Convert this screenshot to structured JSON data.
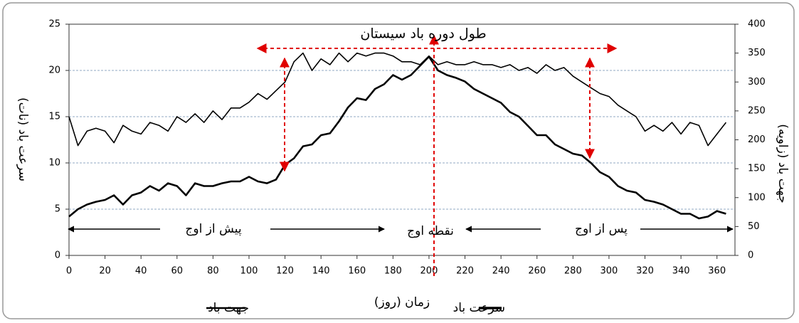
{
  "chart_data": {
    "type": "line",
    "x_label": "زمان (روز)",
    "y_label": "سرعت باد (نات)",
    "y2_label": "جهت باد (زاویه)",
    "annotations": [
      "طول دوره باد سیستان",
      "پیش از اوج",
      "نقطه اوج",
      "پس از اوج"
    ],
    "x": [
      0,
      5,
      10,
      15,
      20,
      25,
      30,
      35,
      40,
      45,
      50,
      55,
      60,
      65,
      70,
      75,
      80,
      85,
      90,
      95,
      100,
      105,
      110,
      115,
      120,
      125,
      130,
      135,
      140,
      145,
      150,
      155,
      160,
      165,
      170,
      175,
      180,
      185,
      190,
      195,
      200,
      205,
      210,
      215,
      220,
      225,
      230,
      235,
      240,
      245,
      250,
      255,
      260,
      265,
      270,
      275,
      280,
      285,
      290,
      295,
      300,
      305,
      310,
      315,
      320,
      325,
      330,
      335,
      340,
      345,
      350,
      355,
      360,
      365
    ],
    "xlim": [
      0,
      370
    ],
    "xticks": [
      0,
      20,
      40,
      60,
      80,
      100,
      120,
      140,
      160,
      180,
      200,
      220,
      240,
      260,
      280,
      300,
      320,
      340,
      360
    ],
    "ylim": [
      0,
      25
    ],
    "yticks": [
      0,
      5,
      10,
      15,
      20,
      25
    ],
    "y2lim": [
      0,
      400
    ],
    "y2ticks": [
      0,
      50,
      100,
      150,
      200,
      250,
      300,
      350,
      400
    ],
    "grid": true,
    "series": [
      {
        "name": "جهت باد",
        "color": "#000000",
        "line_width": 1.6,
        "axis": "y2",
        "values": [
          240,
          190,
          215,
          220,
          215,
          195,
          225,
          215,
          210,
          230,
          225,
          215,
          240,
          230,
          245,
          230,
          250,
          235,
          255,
          255,
          265,
          280,
          270,
          285,
          300,
          335,
          350,
          320,
          340,
          330,
          350,
          335,
          350,
          345,
          350,
          350,
          345,
          335,
          335,
          330,
          345,
          330,
          335,
          330,
          330,
          335,
          330,
          330,
          325,
          330,
          320,
          325,
          315,
          330,
          320,
          325,
          310,
          300,
          290,
          280,
          275,
          260,
          250,
          240,
          215,
          225,
          215,
          230,
          210,
          230,
          225,
          190,
          210,
          230
        ]
      },
      {
        "name": "سرعت باد",
        "color": "#000000",
        "line_width": 2.6,
        "values": [
          4.2,
          5,
          5.5,
          5.8,
          6,
          6.5,
          5.5,
          6.5,
          6.8,
          7.5,
          7,
          7.8,
          7.5,
          6.5,
          7.8,
          7.5,
          7.5,
          7.8,
          8,
          8,
          8.5,
          8,
          7.8,
          8.2,
          9.8,
          10.5,
          11.8,
          12,
          13,
          13.2,
          14.5,
          16,
          17,
          16.8,
          18,
          18.5,
          19.5,
          19,
          19.5,
          20.5,
          21.5,
          20,
          19.5,
          19.2,
          18.8,
          18,
          17.5,
          17,
          16.5,
          15.5,
          15,
          14,
          13,
          13,
          12,
          11.5,
          11,
          10.8,
          10,
          9,
          8.5,
          7.5,
          7,
          6.8,
          6,
          5.8,
          5.5,
          5,
          4.5,
          4.5,
          4,
          4.2,
          4.8,
          4.5
        ]
      }
    ]
  }
}
